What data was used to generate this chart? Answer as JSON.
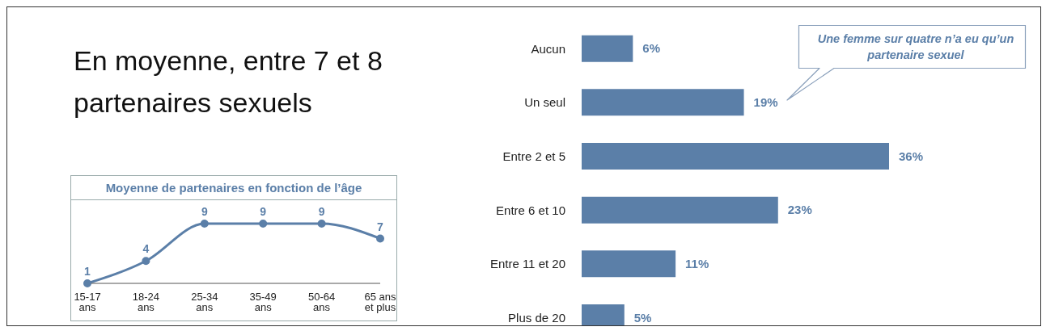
{
  "chart_data": [
    {
      "type": "other",
      "title": "En moyenne, entre 7 et 8 partenaires sexuels"
    },
    {
      "type": "line",
      "title": "Moyenne de partenaires en fonction de l’âge",
      "categories": [
        "15-17 ans",
        "18-24 ans",
        "25-34 ans",
        "35-49 ans",
        "50-64 ans",
        "65 ans et plus"
      ],
      "values": [
        1,
        4,
        9,
        9,
        9,
        7
      ],
      "color": "#5b7fa8",
      "data_labels": true,
      "marker": "circle"
    },
    {
      "type": "bar",
      "orientation": "horizontal",
      "categories": [
        "Aucun",
        "Un seul",
        "Entre 2 et 5",
        "Entre 6 et 10",
        "Entre 11 et 20",
        "Plus de 20"
      ],
      "values": [
        6,
        19,
        36,
        23,
        11,
        5
      ],
      "color": "#5b7fa8",
      "value_labels": [
        "6%",
        "19%",
        "36%",
        "23%",
        "11%",
        "5%"
      ],
      "annotations": [
        "Une femme sur quatre n’a eu qu’un partenaire sexuel"
      ]
    }
  ]
}
